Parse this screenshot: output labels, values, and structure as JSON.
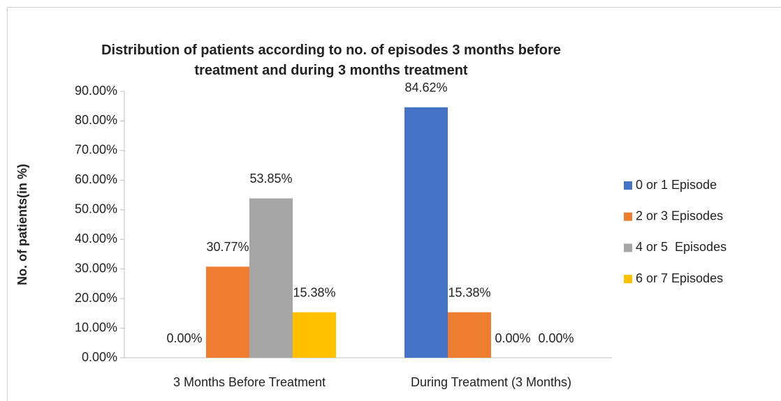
{
  "chart_data": {
    "type": "bar",
    "title": "Distribution of patients according to no. of episodes 3 months before treatment and during 3 months treatment",
    "y_label": "No. of patients(in %)",
    "categories": [
      "3 Months Before Treatment",
      "During Treatment (3 Months)"
    ],
    "series": [
      {
        "name": "0 or 1 Episode",
        "color": "#4472c4",
        "values": [
          0,
          84.62
        ],
        "value_labels": [
          "0.00%",
          "84.62%"
        ]
      },
      {
        "name": "2 or 3 Episodes",
        "color": "#ed7d31",
        "values": [
          30.77,
          15.38
        ],
        "value_labels": [
          "30.77%",
          "15.38%"
        ]
      },
      {
        "name": "4 or 5  Episodes",
        "color": "#a5a5a5",
        "values": [
          53.85,
          0
        ],
        "value_labels": [
          "53.85%",
          "0.00%"
        ]
      },
      {
        "name": "6 or 7 Episodes",
        "color": "#ffc000",
        "values": [
          15.38,
          0
        ],
        "value_labels": [
          "15.38%",
          "0.00%"
        ]
      }
    ],
    "ylim": [
      0,
      90
    ],
    "yticks": [
      {
        "value": 0,
        "label": "0.00%"
      },
      {
        "value": 10,
        "label": "10.00%"
      },
      {
        "value": 20,
        "label": "20.00%"
      },
      {
        "value": 30,
        "label": "30.00%"
      },
      {
        "value": 40,
        "label": "40.00%"
      },
      {
        "value": 50,
        "label": "50.00%"
      },
      {
        "value": 60,
        "label": "60.00%"
      },
      {
        "value": 70,
        "label": "70.00%"
      },
      {
        "value": 80,
        "label": "80.00%"
      },
      {
        "value": 90,
        "label": "90.00%"
      }
    ],
    "legend": "right"
  }
}
